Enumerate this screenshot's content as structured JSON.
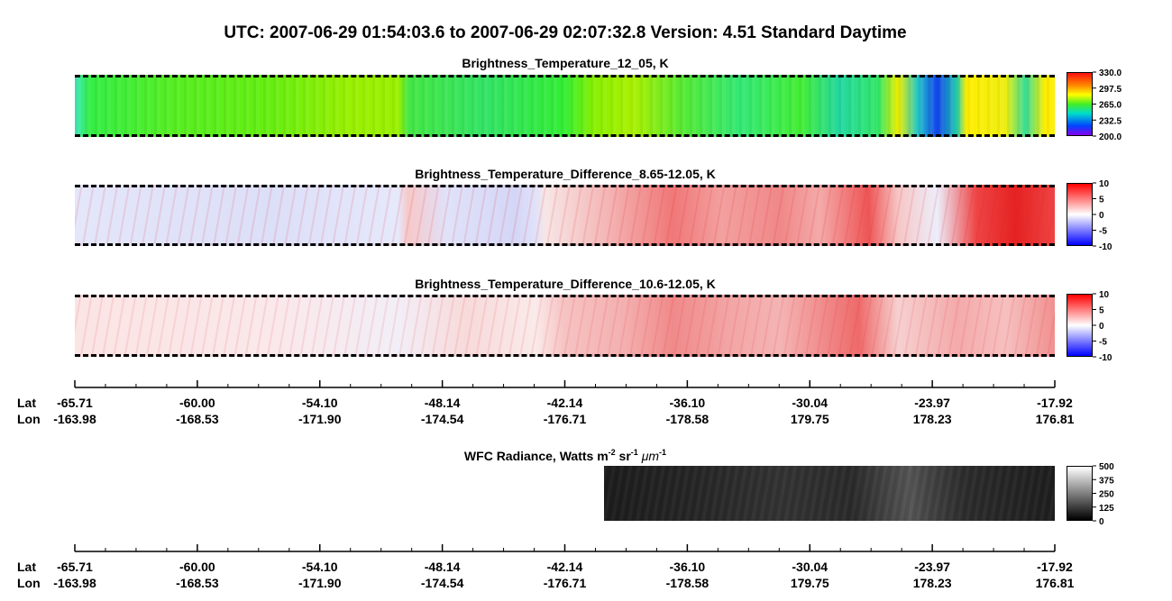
{
  "header": {
    "title": "UTC:  2007-06-29   01:54:03.6  to  2007-06-29   02:07:32.8    Version: 4.51  Standard Daytime"
  },
  "panels": [
    {
      "title": "Brightness_Temperature_12_05, K",
      "colorbar": [
        "330.0",
        "297.5",
        "265.0",
        "232.5",
        "200.0"
      ]
    },
    {
      "title": "Brightness_Temperature_Difference_8.65-12.05, K",
      "colorbar": [
        "10",
        "5",
        "0",
        "-5",
        "-10"
      ]
    },
    {
      "title": "Brightness_Temperature_Difference_10.6-12.05, K",
      "colorbar": [
        "10",
        "5",
        "0",
        "-5",
        "-10"
      ]
    }
  ],
  "wfc": {
    "title_parts": [
      "WFC Radiance, Watts m",
      "-2",
      " sr",
      "-1",
      " μm",
      "-1"
    ],
    "colorbar": [
      "500",
      "375",
      "250",
      "125",
      "0"
    ]
  },
  "axes": [
    {
      "lat_label": "Lat",
      "lon_label": "Lon",
      "lat": [
        "-65.71",
        "-60.00",
        "-54.10",
        "-48.14",
        "-42.14",
        "-36.10",
        "-30.04",
        "-23.97",
        "-17.92"
      ],
      "lon": [
        "-163.98",
        "-168.53",
        "-171.90",
        "-174.54",
        "-176.71",
        "-178.58",
        "179.75",
        "178.23",
        "176.81"
      ]
    },
    {
      "lat_label": "Lat",
      "lon_label": "Lon",
      "lat": [
        "-65.71",
        "-60.00",
        "-54.10",
        "-48.14",
        "-42.14",
        "-36.10",
        "-30.04",
        "-23.97",
        "-17.92"
      ],
      "lon": [
        "-163.98",
        "-168.53",
        "-171.90",
        "-174.54",
        "-176.71",
        "-178.58",
        "179.75",
        "178.23",
        "176.81"
      ]
    }
  ]
}
